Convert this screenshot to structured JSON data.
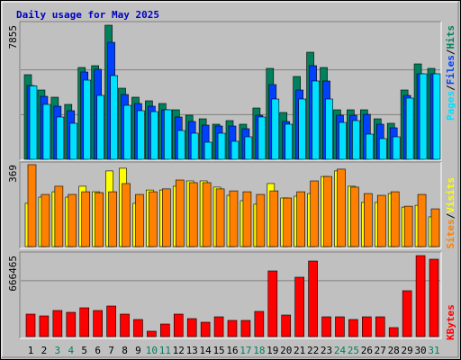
{
  "chart_data": [
    {
      "type": "bar",
      "title": "Daily usage for May 2025",
      "categories": [
        "1",
        "2",
        "3",
        "4",
        "5",
        "6",
        "7",
        "8",
        "9",
        "10",
        "11",
        "12",
        "13",
        "14",
        "15",
        "16",
        "17",
        "18",
        "19",
        "20",
        "21",
        "22",
        "23",
        "24",
        "25",
        "26",
        "27",
        "28",
        "29",
        "30",
        "31"
      ],
      "category_colors": [
        "#000000",
        "#000000",
        "#00805c",
        "#00805c",
        "#000000",
        "#000000",
        "#000000",
        "#000000",
        "#000000",
        "#00805c",
        "#00805c",
        "#000000",
        "#000000",
        "#000000",
        "#000000",
        "#000000",
        "#00805c",
        "#00805c",
        "#000000",
        "#000000",
        "#000000",
        "#000000",
        "#000000",
        "#00805c",
        "#00805c",
        "#000000",
        "#000000",
        "#000000",
        "#000000",
        "#000000",
        "#00805c"
      ],
      "legend_separator": "/",
      "ylim": [
        0,
        7855
      ],
      "yticks": [
        7855
      ],
      "series": [
        {
          "name": "Hits",
          "color": "#00805c",
          "values": [
            4956,
            4059,
            3638,
            3216,
            5377,
            5483,
            7855,
            4165,
            3638,
            3427,
            3269,
            2900,
            2583,
            2372,
            2056,
            2267,
            2056,
            3005,
            5325,
            2741,
            4850,
            6273,
            5377,
            2900,
            2900,
            2900,
            2372,
            2109,
            4059,
            5588,
            5325
          ]
        },
        {
          "name": "Files",
          "color": "#0040ff",
          "values": [
            4323,
            3690,
            3110,
            2847,
            5114,
            5272,
            6853,
            3796,
            3269,
            3110,
            2900,
            2478,
            2214,
            2003,
            1951,
            1951,
            1792,
            2583,
            4376,
            2214,
            4059,
            5483,
            4587,
            2583,
            2583,
            2636,
            2056,
            1845,
            3743,
            5008,
            5008
          ]
        },
        {
          "name": "Pages",
          "color": "#00e0ff",
          "values": [
            4300,
            3216,
            2478,
            2109,
            4639,
            3743,
            4903,
            3163,
            2847,
            2794,
            2900,
            1687,
            1529,
            1002,
            1529,
            1054,
            1318,
            2478,
            3532,
            2056,
            3532,
            4587,
            3532,
            2161,
            2267,
            1476,
            1212,
            1318,
            3585,
            5008,
            5008
          ]
        }
      ]
    },
    {
      "type": "bar",
      "legend_separator": "/",
      "ylim": [
        0,
        369
      ],
      "yticks": [
        369
      ],
      "series": [
        {
          "name": "Visits",
          "color": "#ffff00",
          "values": [
            195,
            223,
            247,
            223,
            272,
            247,
            341,
            353,
            195,
            255,
            255,
            272,
            296,
            296,
            268,
            231,
            207,
            191,
            284,
            219,
            227,
            239,
            316,
            341,
            272,
            199,
            199,
            239,
            178,
            186,
            134
          ]
        },
        {
          "name": "Sites",
          "color": "#ff8000",
          "values": [
            369,
            235,
            272,
            235,
            247,
            243,
            247,
            284,
            235,
            247,
            260,
            300,
            288,
            288,
            260,
            251,
            247,
            235,
            251,
            219,
            247,
            296,
            316,
            349,
            268,
            239,
            231,
            247,
            182,
            235,
            170
          ]
        }
      ]
    },
    {
      "type": "bar",
      "ylim": [
        0,
        666465
      ],
      "yticks": [
        666465
      ],
      "series": [
        {
          "name": "KBytes",
          "color": "#ff0000",
          "values": [
            185129,
            170319,
            214750,
            199940,
            236959,
            214750,
            251769,
            185129,
            140700,
            44431,
            103672,
            185129,
            148103,
            118482,
            162914,
            133293,
            133293,
            207345,
            540577,
            177724,
            488741,
            622034,
            162914,
            162914,
            140700,
            162914,
            162914,
            74052,
            377664,
            666465,
            636844
          ]
        }
      ]
    }
  ]
}
